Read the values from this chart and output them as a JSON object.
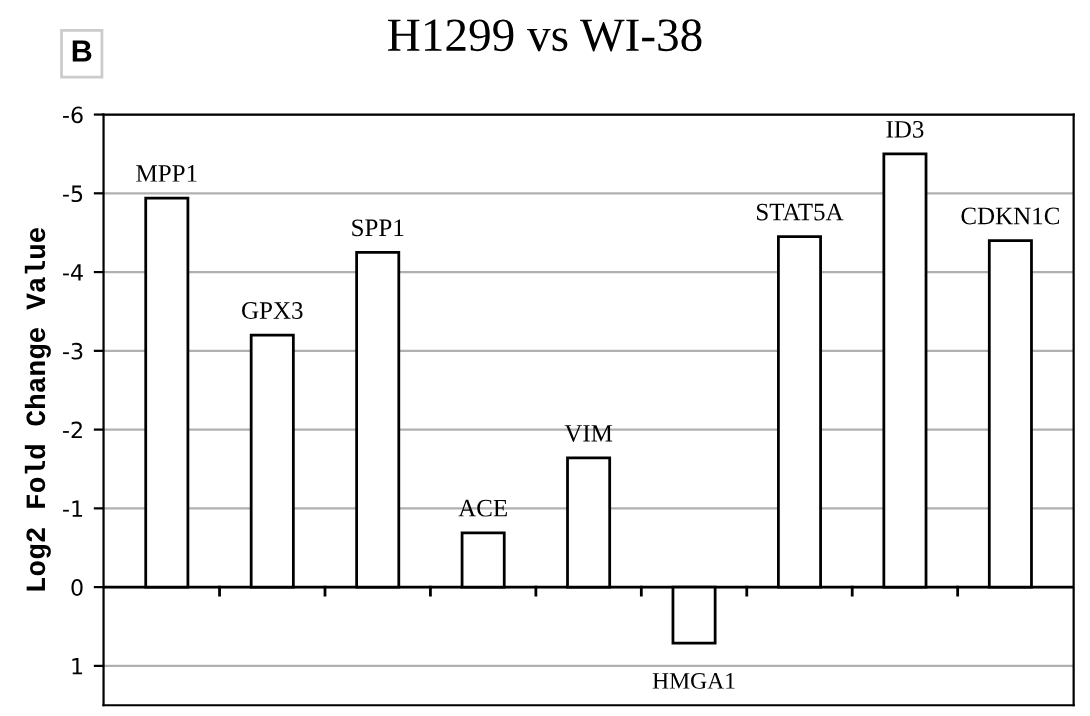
{
  "chart_data": {
    "type": "bar",
    "title": "H1299 vs WI-38",
    "ylabel": "Log2 Fold Change Value",
    "annotations": [
      "B"
    ],
    "categories": [
      "MPP1",
      "GPX3",
      "SPP1",
      "ACE",
      "VIM",
      "HMGA1",
      "STAT5A",
      "ID3",
      "CDKN1C"
    ],
    "values": [
      -4.94,
      -3.2,
      -4.25,
      -0.69,
      -1.64,
      0.71,
      -4.45,
      -5.5,
      -4.4
    ],
    "color": "#ffffff",
    "ylim": [
      1.5,
      -6
    ],
    "yticks": [
      1,
      0,
      -1,
      -2,
      -3,
      -4,
      -5,
      -6
    ],
    "grid": "y",
    "tick_labels": "y"
  }
}
